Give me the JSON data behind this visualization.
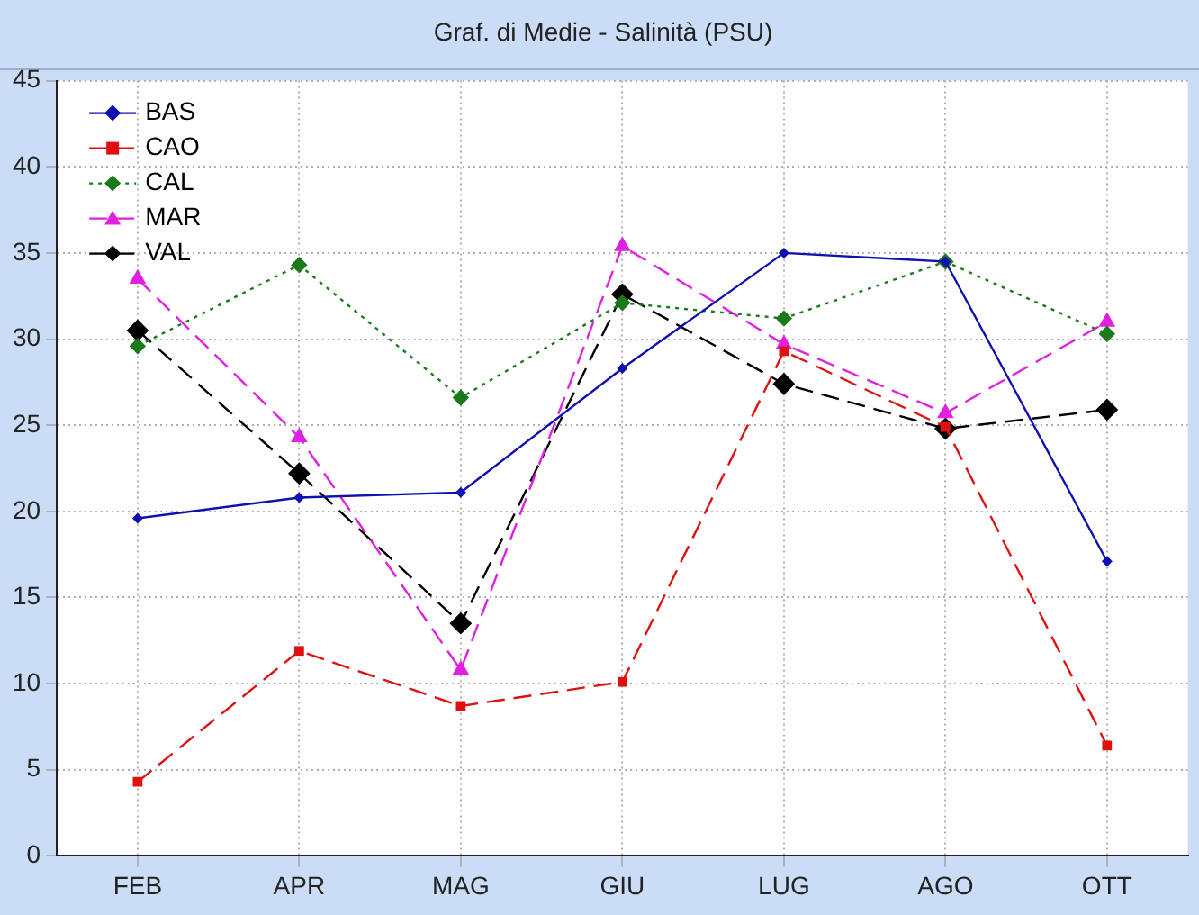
{
  "chart_data": {
    "type": "line",
    "title": "Graf. di Medie - Salinità (PSU)",
    "categories": [
      "FEB",
      "APR",
      "MAG",
      "GIU",
      "LUG",
      "AGO",
      "OTT"
    ],
    "ylim": [
      0,
      45
    ],
    "yticks": [
      0,
      5,
      10,
      15,
      20,
      25,
      30,
      35,
      40,
      45
    ],
    "grid": true,
    "legend": "top left",
    "series": [
      {
        "name": "BAS",
        "color": "#1010b0",
        "marker": "diamond",
        "line_style": "solid",
        "values": [
          19.6,
          20.8,
          21.1,
          28.3,
          35.0,
          34.5,
          17.1
        ]
      },
      {
        "name": "CAO",
        "color": "#e01010",
        "marker": "square",
        "line_style": "dashed",
        "values": [
          4.3,
          11.9,
          8.7,
          10.1,
          29.3,
          24.9,
          6.4
        ]
      },
      {
        "name": "CAL",
        "color": "#1a7a1a",
        "marker": "diamond",
        "line_style": "dotted",
        "values": [
          29.6,
          34.3,
          26.6,
          32.1,
          31.2,
          34.5,
          30.3
        ]
      },
      {
        "name": "MAR",
        "color": "#e020e0",
        "marker": "triangle",
        "line_style": "dashed",
        "values": [
          33.5,
          24.3,
          10.8,
          35.4,
          29.7,
          25.7,
          31.0
        ]
      },
      {
        "name": "VAL",
        "color": "#000000",
        "marker": "diamond",
        "line_style": "dashed",
        "values": [
          30.5,
          22.2,
          13.5,
          32.6,
          27.4,
          24.8,
          25.9
        ]
      }
    ]
  }
}
